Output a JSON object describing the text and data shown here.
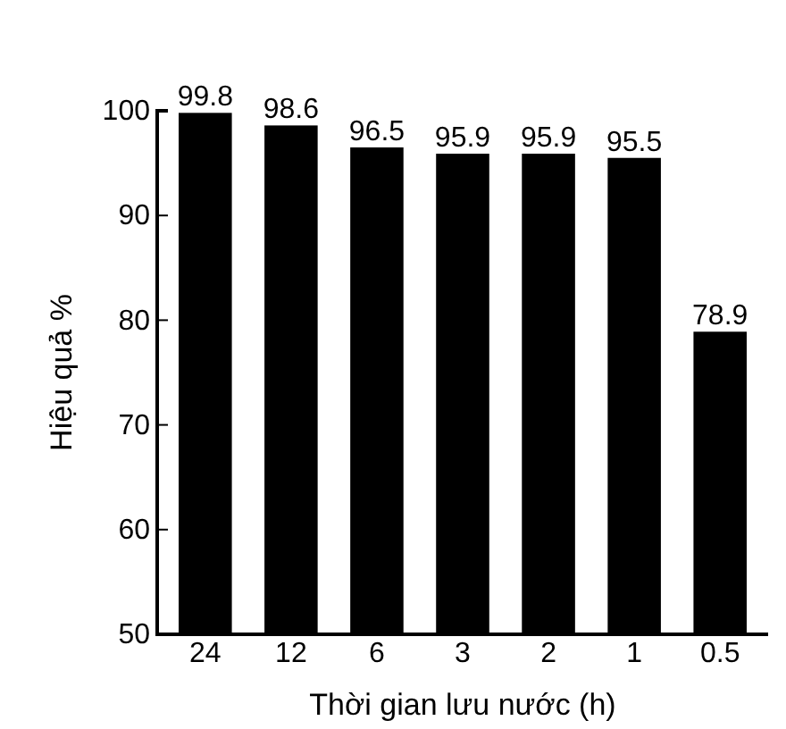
{
  "chart_data": {
    "type": "bar",
    "xlabel": "Thời gian lưu nước (h)",
    "ylabel": "Hiệu quả %",
    "categories": [
      "24",
      "12",
      "6",
      "3",
      "2",
      "1",
      "0.5"
    ],
    "values": [
      99.8,
      98.6,
      96.5,
      95.9,
      95.9,
      95.5,
      78.9
    ],
    "color": "#000000",
    "ylim": [
      50,
      100
    ],
    "yticks": [
      50,
      60,
      70,
      80,
      90,
      100
    ],
    "data_labels": true
  }
}
